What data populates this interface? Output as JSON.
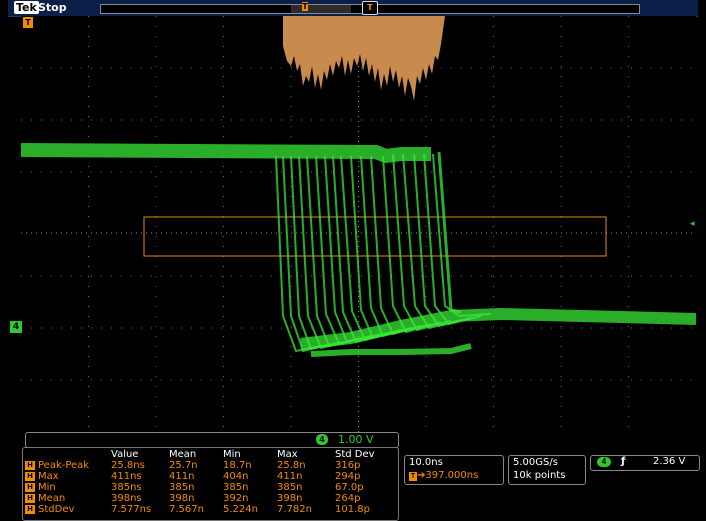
{
  "topbar": {
    "brand": "Tek",
    "state": "Stop"
  },
  "markers": {
    "channel": "4",
    "trigger_pos": "T",
    "expansion": "T"
  },
  "channel_scale": {
    "channel": "4",
    "value": "1.00 V"
  },
  "measurements": {
    "headers": [
      "",
      "Value",
      "Mean",
      "Min",
      "Max",
      "Std Dev"
    ],
    "rows": [
      {
        "name": "Peak-Peak",
        "value": "25.8ns",
        "mean": "25.7n",
        "min": "18.7n",
        "max": "25.8n",
        "std": "316p"
      },
      {
        "name": "Max",
        "value": "411ns",
        "mean": "411n",
        "min": "404n",
        "max": "411n",
        "std": "294p"
      },
      {
        "name": "Min",
        "value": "385ns",
        "mean": "385n",
        "min": "385n",
        "max": "385n",
        "std": "67.0p"
      },
      {
        "name": "Mean",
        "value": "398ns",
        "mean": "398n",
        "min": "392n",
        "max": "398n",
        "std": "264p"
      },
      {
        "name": "StdDev",
        "value": "7.577ns",
        "mean": "7.567n",
        "min": "5.224n",
        "max": "7.782n",
        "std": "101.8p"
      }
    ]
  },
  "horizontal": {
    "scale": "10.0ns",
    "position": "397.000ns"
  },
  "sampling": {
    "rate": "5.00GS/s",
    "points": "10k points"
  },
  "trigger": {
    "channel": "4",
    "slope": "ƒ",
    "level": "2.36 V"
  },
  "colors": {
    "channel": "#30c830",
    "histogram": "#f28c00"
  }
}
